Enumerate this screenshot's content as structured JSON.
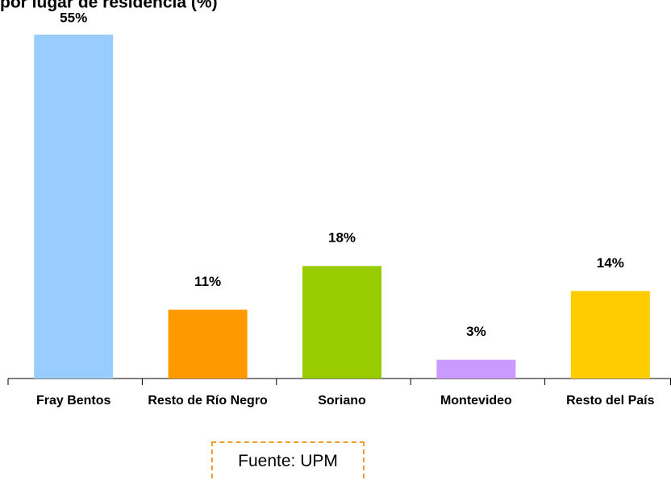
{
  "chart_data": {
    "type": "bar",
    "title": "por lugar de residencia (%)",
    "categories": [
      "Fray Bentos",
      "Resto de Río Negro",
      "Soriano",
      "Montevideo",
      "Resto del País"
    ],
    "series": [
      {
        "values": [
          55,
          11,
          18,
          3,
          14
        ],
        "value_labels": [
          "55%",
          "11%",
          "18%",
          "3%",
          "14%"
        ],
        "colors": [
          "#99ccff",
          "#ff9900",
          "#99cc00",
          "#cc99ff",
          "#ffcc00"
        ]
      }
    ],
    "source": "Fuente: UPM"
  }
}
